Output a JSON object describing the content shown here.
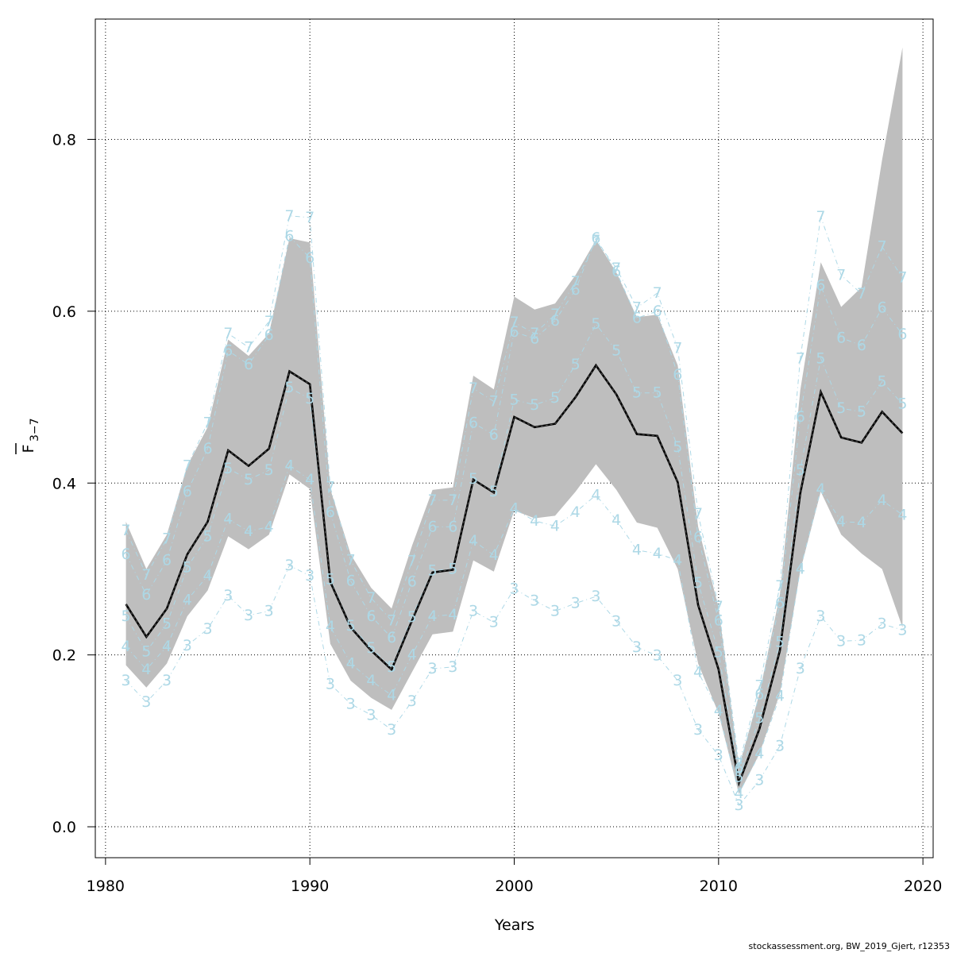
{
  "chart_data": {
    "type": "line",
    "title": "",
    "xlabel": "Years",
    "ylabel": {
      "main": "F",
      "sub": "3−7"
    },
    "xlim": [
      1979.5,
      2020.5
    ],
    "ylim": [
      -0.036,
      0.94
    ],
    "x_ticks": [
      1980,
      1990,
      2000,
      2010,
      2020
    ],
    "y_ticks": [
      0.0,
      0.2,
      0.4,
      0.6,
      0.8
    ],
    "x_tick_labels": [
      "1980",
      "1990",
      "2000",
      "2010",
      "2020"
    ],
    "y_tick_labels": [
      "0.0",
      "0.2",
      "0.4",
      "0.6",
      "0.8"
    ],
    "grid": true,
    "colors": {
      "band": "#bebebe",
      "main_line": "#000000",
      "age_series": "#add8e6",
      "grid": "#000000"
    },
    "x": [
      1981,
      1982,
      1983,
      1984,
      1985,
      1986,
      1987,
      1988,
      1989,
      1990,
      1991,
      1992,
      1993,
      1994,
      1995,
      1996,
      1997,
      1998,
      1999,
      2000,
      2001,
      2002,
      2003,
      2004,
      2005,
      2006,
      2007,
      2008,
      2009,
      2010,
      2011,
      2012,
      2013,
      2014,
      2015,
      2016,
      2017,
      2018,
      2019
    ],
    "estimate": [
      0.259,
      0.221,
      0.254,
      0.317,
      0.355,
      0.438,
      0.42,
      0.44,
      0.53,
      0.515,
      0.285,
      0.232,
      0.205,
      0.183,
      0.24,
      0.296,
      0.299,
      0.404,
      0.389,
      0.477,
      0.465,
      0.469,
      0.5,
      0.537,
      0.503,
      0.457,
      0.455,
      0.401,
      0.258,
      0.183,
      0.051,
      0.114,
      0.205,
      0.388,
      0.506,
      0.453,
      0.447,
      0.483,
      0.458
    ],
    "lower": [
      0.188,
      0.162,
      0.19,
      0.245,
      0.275,
      0.338,
      0.323,
      0.34,
      0.41,
      0.393,
      0.213,
      0.17,
      0.15,
      0.136,
      0.18,
      0.224,
      0.227,
      0.31,
      0.297,
      0.368,
      0.359,
      0.362,
      0.39,
      0.422,
      0.392,
      0.354,
      0.348,
      0.3,
      0.19,
      0.132,
      0.038,
      0.085,
      0.155,
      0.298,
      0.39,
      0.34,
      0.318,
      0.3,
      0.232
    ],
    "upper": [
      0.355,
      0.3,
      0.34,
      0.42,
      0.465,
      0.567,
      0.548,
      0.574,
      0.685,
      0.68,
      0.393,
      0.317,
      0.278,
      0.254,
      0.327,
      0.392,
      0.395,
      0.525,
      0.509,
      0.617,
      0.602,
      0.609,
      0.642,
      0.683,
      0.645,
      0.593,
      0.596,
      0.537,
      0.349,
      0.255,
      0.07,
      0.155,
      0.27,
      0.508,
      0.657,
      0.605,
      0.628,
      0.776,
      0.907
    ],
    "age_series": [
      {
        "label": "3",
        "values": [
          0.17,
          0.145,
          0.17,
          0.211,
          0.23,
          0.269,
          0.246,
          0.251,
          0.304,
          0.292,
          0.166,
          0.143,
          0.13,
          0.113,
          0.146,
          0.184,
          0.186,
          0.251,
          0.238,
          0.277,
          0.263,
          0.251,
          0.26,
          0.268,
          0.239,
          0.209,
          0.199,
          0.17,
          0.113,
          0.083,
          0.025,
          0.054,
          0.094,
          0.184,
          0.245,
          0.216,
          0.217,
          0.236,
          0.229
        ]
      },
      {
        "label": "4",
        "values": [
          0.21,
          0.183,
          0.21,
          0.264,
          0.292,
          0.358,
          0.344,
          0.349,
          0.42,
          0.404,
          0.233,
          0.19,
          0.17,
          0.153,
          0.2,
          0.245,
          0.247,
          0.333,
          0.316,
          0.37,
          0.356,
          0.35,
          0.366,
          0.386,
          0.357,
          0.322,
          0.318,
          0.31,
          0.18,
          0.135,
          0.039,
          0.085,
          0.152,
          0.3,
          0.393,
          0.355,
          0.354,
          0.38,
          0.363
        ]
      },
      {
        "label": "5",
        "values": [
          0.245,
          0.204,
          0.236,
          0.302,
          0.338,
          0.417,
          0.404,
          0.415,
          0.511,
          0.498,
          0.288,
          0.234,
          0.208,
          0.186,
          0.244,
          0.298,
          0.3,
          0.405,
          0.39,
          0.497,
          0.491,
          0.499,
          0.538,
          0.585,
          0.554,
          0.505,
          0.505,
          0.442,
          0.284,
          0.203,
          0.058,
          0.126,
          0.215,
          0.415,
          0.545,
          0.487,
          0.483,
          0.518,
          0.492
        ]
      },
      {
        "label": "6",
        "values": [
          0.317,
          0.27,
          0.31,
          0.39,
          0.44,
          0.554,
          0.538,
          0.572,
          0.687,
          0.662,
          0.366,
          0.286,
          0.245,
          0.22,
          0.285,
          0.349,
          0.349,
          0.47,
          0.456,
          0.576,
          0.568,
          0.589,
          0.625,
          0.685,
          0.646,
          0.592,
          0.6,
          0.526,
          0.337,
          0.24,
          0.068,
          0.154,
          0.26,
          0.477,
          0.63,
          0.569,
          0.56,
          0.604,
          0.573
        ]
      },
      {
        "label": "7",
        "values": [
          0.345,
          0.293,
          0.335,
          0.42,
          0.47,
          0.574,
          0.558,
          0.588,
          0.711,
          0.709,
          0.395,
          0.31,
          0.266,
          0.24,
          0.309,
          0.38,
          0.38,
          0.51,
          0.495,
          0.587,
          0.574,
          0.596,
          0.634,
          0.682,
          0.65,
          0.604,
          0.621,
          0.557,
          0.364,
          0.256,
          0.073,
          0.164,
          0.28,
          0.545,
          0.71,
          0.642,
          0.62,
          0.675,
          0.639
        ]
      }
    ]
  },
  "footer": {
    "credit": "stockassessment.org, BW_2019_Gjert, r12353"
  }
}
